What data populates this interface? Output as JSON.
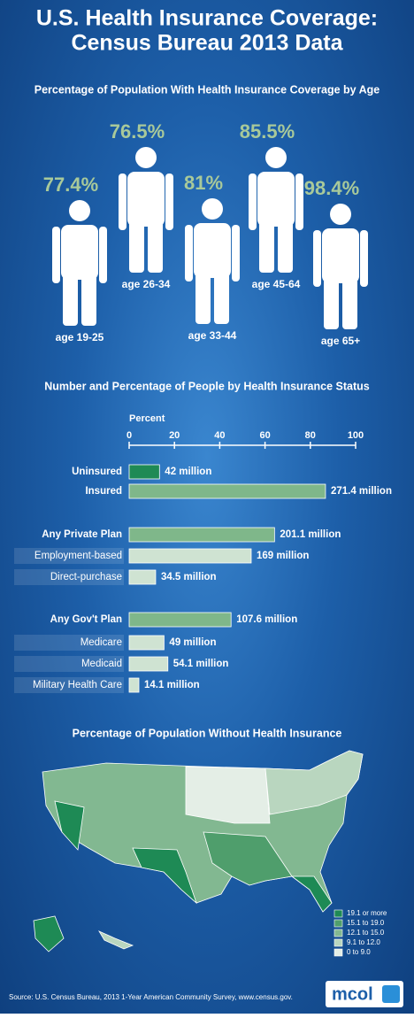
{
  "header": {
    "title_lines": [
      "U.S. Health Insurance Coverage:",
      "Census Bureau 2013 Data"
    ]
  },
  "chart_data": [
    {
      "type": "pictograph",
      "title": "Percentage of Population With Health Insurance Coverage by Age",
      "categories": [
        "age 19-25",
        "age 26-34",
        "age 33-44",
        "age 45-64",
        "age 65+"
      ],
      "values": [
        77.4,
        76.5,
        81,
        85.5,
        98.4
      ],
      "value_labels": [
        "77.4%",
        "76.5%",
        "81%",
        "85.5%",
        "98.4%"
      ],
      "color": "#ffffff",
      "label_color": "#a8c99a"
    },
    {
      "type": "hbar",
      "title": "Number and Percentage of People by Health Insurance Status",
      "xlabel": "Percent",
      "categories": [
        "Uninsured",
        "Insured",
        "Any Private Plan",
        "Employment-based",
        "Direct-purchase",
        "Any Gov't Plan",
        "Medicare",
        "Medicaid",
        "Military Health Care"
      ],
      "values": [
        13.4,
        86.7,
        64.2,
        53.9,
        11.7,
        45,
        15.4,
        17.1,
        4.3
      ],
      "count_labels": [
        "42 million",
        "271.4 million",
        "201.1 million",
        "169 million",
        "34.5 million",
        "107.6 million",
        "49 million",
        "54.1 million",
        "14.1 million"
      ],
      "colors": [
        "#1f8a55",
        "#7fb78a",
        "#7fb78a",
        "#cfe3d2",
        "#cfe3d2",
        "#7fb78a",
        "#cfe3d2",
        "#cfe3d2",
        "#cfe3d2"
      ],
      "xlim": [
        0,
        100
      ],
      "xticks": [
        0,
        20,
        40,
        60,
        80,
        100
      ]
    },
    {
      "type": "choropleth",
      "title": "Percentage of Population Without Health Insurance",
      "legend": [
        "19.1 or more",
        "15.1 to 19.0",
        "12.1 to 15.0",
        "9.1 to 12.0",
        "0 to 9.0"
      ],
      "legend_colors": [
        "#1e8a55",
        "#4f9e6c",
        "#82b891",
        "#b9d6bf",
        "#e4eee6"
      ]
    }
  ],
  "source": "Source: U.S. Census Bureau, 2013 1-Year American Community Survey, www.census.gov.",
  "logo": "mcol"
}
